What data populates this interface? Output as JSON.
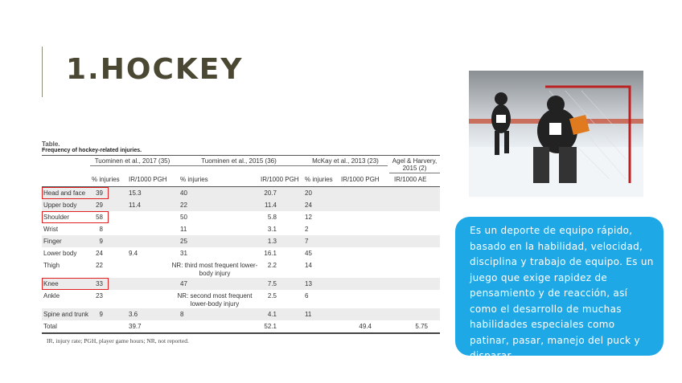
{
  "slide": {
    "title": "1.HOCKEY"
  },
  "table": {
    "caption": "Table.",
    "subtitle": "Frequency of hockey-related injuries.",
    "studies": [
      "Tuominen et al., 2017 (35)",
      "Tuominen et al., 2015 (36)",
      "McKay et al., 2013 (23)",
      "Agel & Harvery, 2015 (2)"
    ],
    "columns": [
      "% injuries",
      "IR/1000 PGH",
      "% injuries",
      "IR/1000 PGH",
      "% injuries",
      "IR/1000 PGH",
      "IR/1000 AE"
    ],
    "rows": [
      {
        "label": "Head and face",
        "v": [
          "39",
          "15.3",
          "40",
          "20.7",
          "20",
          "",
          ""
        ],
        "highlight": true
      },
      {
        "label": "Upper body",
        "v": [
          "29",
          "11.4",
          "22",
          "11.4",
          "24",
          "",
          ""
        ]
      },
      {
        "label": "Shoulder",
        "v": [
          "58",
          "",
          "50",
          "5.8",
          "12",
          "",
          ""
        ],
        "highlight": true
      },
      {
        "label": "Wrist",
        "v": [
          "8",
          "",
          "11",
          "3.1",
          "2",
          "",
          ""
        ]
      },
      {
        "label": "Finger",
        "v": [
          "9",
          "",
          "25",
          "1.3",
          "7",
          "",
          ""
        ]
      },
      {
        "label": "Lower body",
        "v": [
          "24",
          "9.4",
          "31",
          "16.1",
          "45",
          "",
          ""
        ]
      },
      {
        "label": "Thigh",
        "v": [
          "22",
          "",
          "NR: third most frequent lower-body injury",
          "2.2",
          "14",
          "",
          ""
        ]
      },
      {
        "label": "Knee",
        "v": [
          "33",
          "",
          "47",
          "7.5",
          "13",
          "",
          ""
        ],
        "highlight": true
      },
      {
        "label": "Ankle",
        "v": [
          "23",
          "",
          "NR: second most frequent lower-body injury",
          "2.5",
          "6",
          "",
          ""
        ]
      },
      {
        "label": "Spine and trunk",
        "v": [
          "9",
          "3.6",
          "8",
          "4.1",
          "11",
          "",
          ""
        ]
      },
      {
        "label": "Total",
        "v": [
          "",
          "39.7",
          "",
          "52.1",
          "",
          "49.4",
          "5.75"
        ]
      }
    ],
    "footnote": "IR, injury rate; PGH, player game hours; NR, not reported."
  },
  "photo": {
    "description_icon": "hockey-goalie-photo"
  },
  "info_box": {
    "text": "Es un deporte de equipo rápido, basado en la habilidad, velocidad, disciplina y trabajo de equipo. Es un juego que exige rapidez de pensamiento y de reacción, así como el desarrollo de muchas habilidades especiales como patinar, pasar, manejo del puck y disparar.",
    "color": "#1ea8e6"
  },
  "colors": {
    "title": "#4a4733",
    "highlight": "#e02020"
  }
}
